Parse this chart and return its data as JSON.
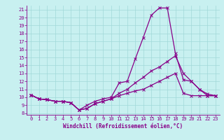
{
  "xlabel": "Windchill (Refroidissement éolien,°C)",
  "background_color": "#c8f0f0",
  "grid_color": "#a0d8d8",
  "line_color": "#880088",
  "xlim": [
    -0.5,
    23.5
  ],
  "ylim": [
    7.8,
    21.5
  ],
  "yticks": [
    8,
    9,
    10,
    11,
    12,
    13,
    14,
    15,
    16,
    17,
    18,
    19,
    20,
    21
  ],
  "xticks": [
    0,
    1,
    2,
    3,
    4,
    5,
    6,
    7,
    8,
    9,
    10,
    11,
    12,
    13,
    14,
    15,
    16,
    17,
    18,
    19,
    20,
    21,
    22,
    23
  ],
  "line1_y": [
    10.3,
    9.8,
    9.7,
    9.5,
    9.5,
    9.3,
    8.4,
    9.0,
    9.5,
    9.8,
    10.0,
    11.8,
    12.0,
    14.8,
    17.5,
    20.3,
    21.2,
    21.2,
    15.5,
    12.2,
    12.0,
    11.0,
    10.2,
    10.2
  ],
  "line2_y": [
    10.3,
    9.8,
    9.7,
    9.5,
    9.5,
    9.3,
    8.4,
    8.6,
    9.2,
    9.5,
    9.8,
    10.5,
    11.0,
    11.8,
    12.5,
    13.3,
    13.8,
    14.5,
    15.2,
    13.0,
    12.0,
    11.0,
    10.4,
    10.2
  ],
  "line3_y": [
    10.3,
    9.8,
    9.7,
    9.5,
    9.5,
    9.3,
    8.4,
    8.6,
    9.2,
    9.5,
    9.8,
    10.2,
    10.5,
    10.8,
    11.0,
    11.5,
    12.0,
    12.5,
    13.0,
    10.5,
    10.2,
    10.2,
    10.2,
    10.2
  ]
}
